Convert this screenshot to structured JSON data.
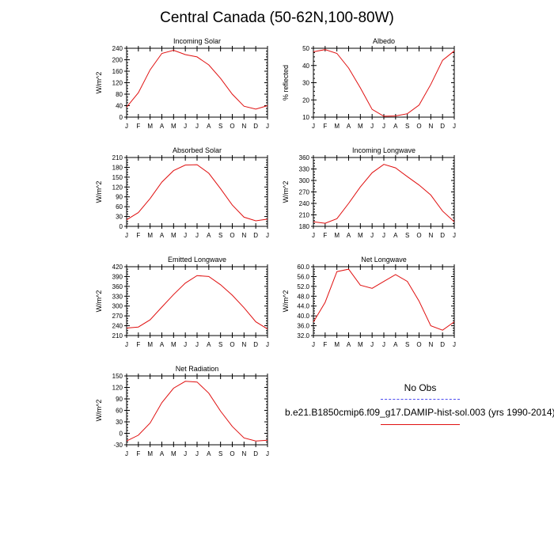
{
  "page": {
    "title": "Central Canada (50-62N,100-80W)"
  },
  "legend": {
    "obs_label": "No Obs",
    "model_label": "b.e21.B1850cmip6.f09_g17.DAMIP-hist-sol.003 (yrs 1990-2014)",
    "obs_color": "#4b4bf0",
    "model_color": "#e01010"
  },
  "chart_data": [
    {
      "type": "line",
      "title": "Incoming Solar",
      "ylabel": "W/m^2",
      "x": [
        "J",
        "F",
        "M",
        "A",
        "M",
        "J",
        "J",
        "A",
        "S",
        "O",
        "N",
        "D",
        "J"
      ],
      "ylim": [
        0,
        240
      ],
      "yticks": [
        0,
        40,
        80,
        120,
        160,
        200,
        240
      ],
      "series": [
        {
          "values": [
            35,
            85,
            165,
            222,
            233,
            218,
            210,
            182,
            135,
            80,
            38,
            28,
            40
          ]
        }
      ]
    },
    {
      "type": "line",
      "title": "Albedo",
      "ylabel": "% reflected",
      "x": [
        "J",
        "F",
        "M",
        "A",
        "M",
        "J",
        "J",
        "A",
        "S",
        "O",
        "N",
        "D",
        "J"
      ],
      "ylim": [
        10,
        50
      ],
      "yticks": [
        10,
        20,
        30,
        40,
        50
      ],
      "series": [
        {
          "values": [
            48,
            49.2,
            47,
            38.5,
            27,
            14.5,
            10.5,
            10.7,
            12,
            17,
            29,
            43,
            48.5
          ]
        }
      ]
    },
    {
      "type": "line",
      "title": "Absorbed Solar",
      "ylabel": "W/m^2",
      "x": [
        "J",
        "F",
        "M",
        "A",
        "M",
        "J",
        "J",
        "A",
        "S",
        "O",
        "N",
        "D",
        "J"
      ],
      "ylim": [
        0,
        210
      ],
      "yticks": [
        0,
        30,
        60,
        90,
        120,
        150,
        180,
        210
      ],
      "series": [
        {
          "values": [
            20,
            42,
            85,
            135,
            170,
            187,
            188,
            162,
            115,
            65,
            28,
            17,
            22
          ]
        }
      ]
    },
    {
      "type": "line",
      "title": "Incoming Longwave",
      "ylabel": "W/m^2",
      "x": [
        "J",
        "F",
        "M",
        "A",
        "M",
        "J",
        "J",
        "A",
        "S",
        "O",
        "N",
        "D",
        "J"
      ],
      "ylim": [
        180,
        360
      ],
      "yticks": [
        180,
        210,
        240,
        270,
        300,
        330,
        360
      ],
      "series": [
        {
          "values": [
            192,
            188,
            200,
            240,
            283,
            320,
            342,
            333,
            310,
            288,
            262,
            220,
            192
          ]
        }
      ]
    },
    {
      "type": "line",
      "title": "Emitted Longwave",
      "ylabel": "W/m^2",
      "x": [
        "J",
        "F",
        "M",
        "A",
        "M",
        "J",
        "J",
        "A",
        "S",
        "O",
        "N",
        "D",
        "J"
      ],
      "ylim": [
        210,
        420
      ],
      "yticks": [
        210,
        240,
        270,
        300,
        330,
        360,
        390,
        420
      ],
      "series": [
        {
          "values": [
            233,
            236,
            258,
            297,
            335,
            370,
            393,
            390,
            365,
            333,
            295,
            252,
            230
          ]
        }
      ]
    },
    {
      "type": "line",
      "title": "Net Longwave",
      "ylabel": "W/m^2",
      "x": [
        "J",
        "F",
        "M",
        "A",
        "M",
        "J",
        "J",
        "A",
        "S",
        "O",
        "N",
        "D",
        "J"
      ],
      "ylim": [
        32,
        60
      ],
      "yticks": [
        32.0,
        36.0,
        40.0,
        44.0,
        48.0,
        52.0,
        56.0,
        60.0
      ],
      "series": [
        {
          "values": [
            37.5,
            45.5,
            58,
            59,
            52.5,
            51.2,
            54,
            56.8,
            54,
            46,
            36,
            34.2,
            37.6
          ]
        }
      ]
    },
    {
      "type": "line",
      "title": "Net Radiation",
      "ylabel": "W/m^2",
      "x": [
        "J",
        "F",
        "M",
        "A",
        "M",
        "J",
        "J",
        "A",
        "S",
        "O",
        "N",
        "D",
        "J"
      ],
      "ylim": [
        -30,
        150
      ],
      "yticks": [
        -30,
        0,
        30,
        60,
        90,
        120,
        150
      ],
      "series": [
        {
          "values": [
            -20,
            -5,
            27,
            80,
            118,
            136,
            134,
            105,
            58,
            18,
            -12,
            -20,
            -18
          ]
        }
      ]
    }
  ]
}
